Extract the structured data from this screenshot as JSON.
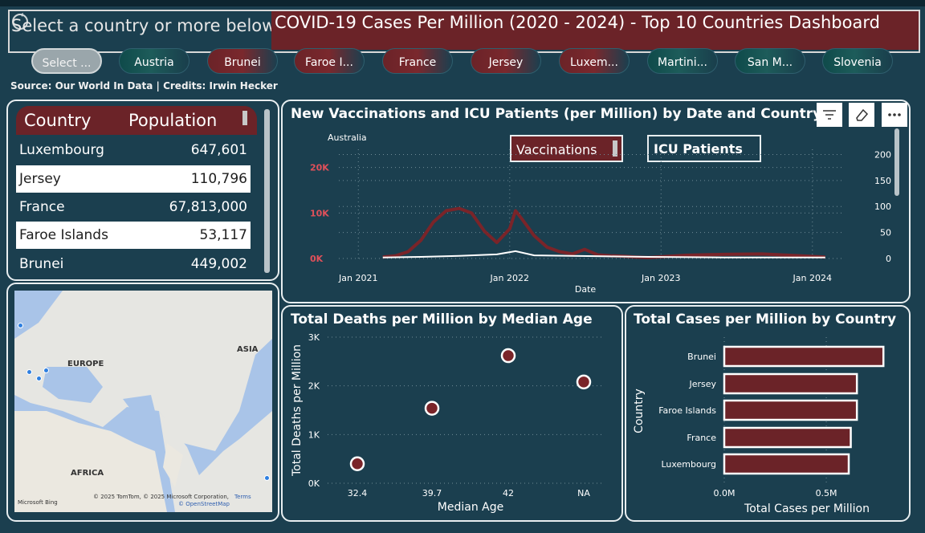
{
  "slicer": {
    "prompt": "Select a country or more below...",
    "pills": [
      {
        "label": "Select ...",
        "style": "sel"
      },
      {
        "label": "Austria",
        "style": "teal"
      },
      {
        "label": "Brunei",
        "style": "red"
      },
      {
        "label": "Faroe I...",
        "style": "red"
      },
      {
        "label": "France",
        "style": "red"
      },
      {
        "label": "Jersey",
        "style": "red"
      },
      {
        "label": "Luxem...",
        "style": "red"
      },
      {
        "label": "Martini...",
        "style": "teal"
      },
      {
        "label": "San M...",
        "style": "teal"
      },
      {
        "label": "Slovenia",
        "style": "teal"
      }
    ]
  },
  "header": {
    "title": "COVID-19 Cases Per Million (2020 - 2024) - Top 10 Countries Dashboard"
  },
  "source": "Source: Our World In Data | Credits: Irwin Hecker",
  "population_table": {
    "columns": [
      "Country",
      "Population"
    ],
    "rows": [
      {
        "country": "Luxembourg",
        "population": "647,601"
      },
      {
        "country": "Jersey",
        "population": "110,796"
      },
      {
        "country": "France",
        "population": "67,813,000"
      },
      {
        "country": "Faroe Islands",
        "population": "53,117"
      },
      {
        "country": "Brunei",
        "population": "449,002"
      }
    ]
  },
  "map": {
    "labels": {
      "europe": "EUROPE",
      "asia": "ASIA",
      "africa": "AFRICA"
    },
    "attribution": "© 2025 TomTom, © 2025 Microsoft Corporation,",
    "osm": "© OpenStreetMap",
    "terms": "Terms",
    "bing": "Microsoft Bing"
  },
  "vacc_chart": {
    "title": "New Vaccinations and ICU Patients (per Million) by Date and Country",
    "country_label": "Australia",
    "legend_vacc": "Vaccinations",
    "legend_icu": "ICU Patients",
    "xlabel": "Date"
  },
  "colors": {
    "accent": "#6b2328",
    "bg": "#1b3f4f",
    "white": "#ffffff"
  },
  "chart_data": [
    {
      "type": "line",
      "title": "New Vaccinations and ICU Patients (per Million) by Date and Country",
      "xlabel": "Date",
      "ylabel": "",
      "x_ticks": [
        "Jan 2021",
        "Jan 2022",
        "Jan 2023",
        "Jan 2024"
      ],
      "y_ticks_left": [
        "0K",
        "10K",
        "20K"
      ],
      "y_ticks_right": [
        "0",
        "50",
        "100",
        "150",
        "200"
      ],
      "ylim_left": [
        0,
        24000
      ],
      "ylim_right": [
        0,
        210
      ],
      "series": [
        {
          "name": "Vaccinations",
          "axis": "left",
          "x": [
            "2021-03-01",
            "2021-04-01",
            "2021-05-01",
            "2021-06-01",
            "2021-07-01",
            "2021-08-01",
            "2021-09-01",
            "2021-10-01",
            "2021-11-01",
            "2021-12-01",
            "2022-01-01",
            "2022-01-15",
            "2022-02-01",
            "2022-03-01",
            "2022-04-01",
            "2022-05-01",
            "2022-06-01",
            "2022-07-01",
            "2022-08-01",
            "2022-09-01",
            "2022-10-01",
            "2022-11-01",
            "2022-12-01",
            "2023-03-01",
            "2023-06-01",
            "2023-09-01",
            "2023-12-01",
            "2024-02-01"
          ],
          "values": [
            300,
            600,
            1500,
            4000,
            8000,
            10500,
            11000,
            10000,
            6000,
            3500,
            6500,
            10500,
            8500,
            5000,
            2500,
            1500,
            1000,
            2000,
            800,
            600,
            500,
            300,
            200,
            700,
            900,
            1000,
            600,
            300
          ]
        },
        {
          "name": "ICU Patients",
          "axis": "right",
          "x": [
            "2021-03-01",
            "2021-06-01",
            "2021-09-01",
            "2021-12-01",
            "2022-01-15",
            "2022-03-01",
            "2022-06-01",
            "2022-09-01",
            "2022-12-01",
            "2023-06-01",
            "2023-12-01",
            "2024-02-01"
          ],
          "values": [
            2,
            3,
            5,
            8,
            14,
            6,
            5,
            4,
            3,
            2,
            2,
            2
          ]
        }
      ]
    },
    {
      "type": "scatter",
      "title": "Total Deaths per Million by Median Age",
      "xlabel": "Median Age",
      "ylabel": "Total Deaths per Million",
      "categories": [
        "32.4",
        "39.7",
        "42",
        "NA"
      ],
      "y_ticks": [
        "0K",
        "1K",
        "2K",
        "3K"
      ],
      "ylim": [
        0,
        3000
      ],
      "points": [
        {
          "x": "32.4",
          "y": 400
        },
        {
          "x": "39.7",
          "y": 1540
        },
        {
          "x": "42",
          "y": 2620
        },
        {
          "x": "NA",
          "y": 2080
        }
      ]
    },
    {
      "type": "bar",
      "title": "Total Cases per Million by Country",
      "xlabel": "Total Cases per Million",
      "ylabel": "Country",
      "categories": [
        "Brunei",
        "Jersey",
        "Faroe Islands",
        "France",
        "Luxembourg"
      ],
      "values": [
        0.78,
        0.65,
        0.65,
        0.62,
        0.61
      ],
      "unit": "M",
      "x_ticks": [
        "0.0M",
        "0.5M"
      ],
      "xlim": [
        0,
        0.85
      ]
    }
  ]
}
